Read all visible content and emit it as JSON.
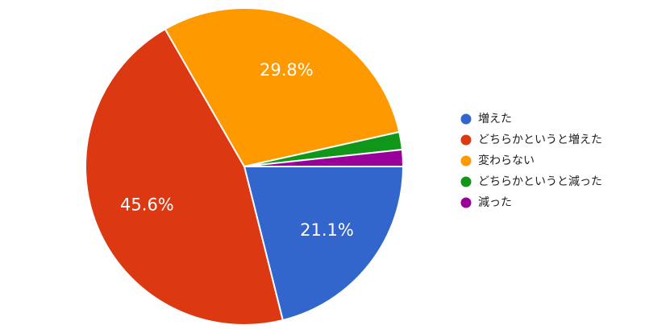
{
  "chart_data": {
    "type": "pie",
    "categories": [
      "増えた",
      "どちらかというと増えた",
      "変わらない",
      "どちらかというと減った",
      "減った"
    ],
    "values": [
      21.1,
      45.6,
      29.8,
      1.8,
      1.7
    ],
    "value_labels": [
      "21.1%",
      "45.6%",
      "29.8%",
      null,
      null
    ],
    "colors": [
      "#3366cc",
      "#dc3912",
      "#ff9900",
      "#109618",
      "#990099"
    ],
    "legend": "right"
  }
}
